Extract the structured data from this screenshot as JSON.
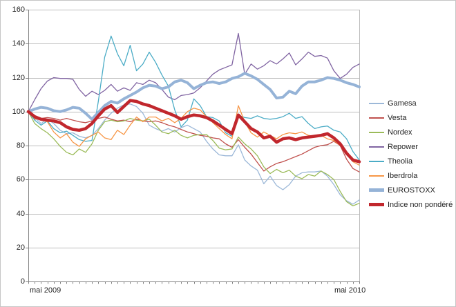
{
  "chart_data": {
    "type": "line",
    "title": "",
    "index_base": 100,
    "grid": true,
    "legend_position": "right",
    "x_axis": {
      "start_label": "mai 2009",
      "end_label": "mai 2010",
      "points": 53,
      "unit": "week"
    },
    "y_axis": {
      "min": 0,
      "max": 160,
      "step": 20,
      "ticks": [
        0,
        20,
        40,
        60,
        80,
        100,
        120,
        140,
        160
      ]
    },
    "colors": {
      "gridline": "#BCBCBC",
      "axis": "#808080",
      "text": "#1F1F1F"
    },
    "series": [
      {
        "name": "Gamesa",
        "color": "#9CB8D8",
        "width": 1.3,
        "values": [
          100,
          96.5,
          93,
          95.5,
          93,
          89,
          87,
          87.5,
          85.5,
          84.5,
          86,
          90,
          95,
          99,
          102,
          104,
          104.5,
          103,
          99,
          92,
          90,
          88.5,
          90,
          88,
          90.5,
          92,
          90,
          88,
          82.5,
          78,
          74.5,
          74,
          74,
          80.5,
          71.5,
          68,
          65.5,
          57.5,
          62,
          56.5,
          54,
          57,
          62,
          64,
          64.5,
          64.5,
          65,
          62,
          57,
          51,
          47.5,
          45.5,
          48
        ]
      },
      {
        "name": "Vesta",
        "color": "#C0504D",
        "width": 1.3,
        "values": [
          100,
          95.5,
          96,
          96.5,
          96,
          95,
          96,
          95,
          94,
          93.5,
          94.5,
          96,
          96.8,
          95.5,
          94.5,
          95,
          94,
          95.5,
          94.5,
          94,
          94.5,
          93.5,
          92,
          91,
          89.5,
          88,
          87,
          86,
          85.5,
          84.5,
          84,
          81,
          79,
          83.5,
          79,
          75,
          70,
          65,
          67.5,
          69.5,
          70.5,
          72,
          73.5,
          75,
          77,
          79,
          80,
          80.5,
          82.5,
          80,
          72,
          66.5,
          64.5
        ]
      },
      {
        "name": "Nordex",
        "color": "#9BBB59",
        "width": 1.3,
        "values": [
          100,
          93,
          90,
          87.5,
          84,
          79.5,
          76,
          74.5,
          78,
          76,
          81,
          89,
          94,
          95,
          94,
          94.5,
          96,
          95,
          94.5,
          95.5,
          92,
          88,
          87,
          89,
          86,
          84.5,
          86,
          86.5,
          86.5,
          83,
          78.5,
          77.5,
          78,
          85,
          81,
          78,
          74,
          67.5,
          63.5,
          66,
          64,
          65.5,
          62,
          60.5,
          63,
          62,
          65,
          63,
          60,
          53,
          47,
          44.5,
          46
        ]
      },
      {
        "name": "Repower",
        "color": "#8064A2",
        "width": 1.3,
        "values": [
          100,
          107,
          113.5,
          118,
          120,
          119.5,
          119.5,
          119,
          113,
          109,
          112,
          110,
          112.5,
          116,
          112,
          114,
          112.5,
          117,
          116,
          118.5,
          117,
          113,
          108.5,
          107,
          109.5,
          110,
          111,
          114,
          118,
          122,
          124.5,
          126,
          127.5,
          146,
          122,
          128,
          125,
          127,
          130,
          128,
          131,
          134.5,
          127.5,
          131,
          135,
          132.5,
          133,
          131.5,
          124,
          119.5,
          122,
          126,
          128
        ]
      },
      {
        "name": "Theolia",
        "color": "#4BACC6",
        "width": 1.3,
        "values": [
          100,
          95,
          92,
          94.5,
          90,
          87.5,
          88.5,
          86,
          83.5,
          82.5,
          83,
          106,
          132,
          144.5,
          134,
          127,
          139,
          124,
          128,
          135,
          129,
          121.5,
          115,
          101,
          91,
          95,
          107.5,
          103.5,
          97,
          96.5,
          94.5,
          87.5,
          85.5,
          98,
          96.5,
          96,
          97.5,
          96,
          95.5,
          96,
          97,
          99,
          96,
          97,
          93,
          90,
          91,
          91.5,
          89,
          88,
          84,
          76.5,
          71.5
        ]
      },
      {
        "name": "Iberdrola",
        "color": "#F79646",
        "width": 1.3,
        "values": [
          100,
          96,
          95,
          94,
          88,
          84.5,
          87,
          82,
          79.5,
          84,
          86,
          88,
          84.5,
          83.5,
          89,
          86.5,
          92,
          96.8,
          94,
          96.8,
          96.8,
          94.5,
          96,
          93.5,
          96,
          100,
          102,
          101,
          97,
          93.5,
          90,
          86.5,
          84,
          103.5,
          94,
          87.5,
          85,
          88,
          86,
          84,
          86.5,
          87.5,
          87,
          88,
          86,
          85.5,
          86,
          84,
          83,
          80,
          75.5,
          70.5,
          68.5
        ]
      },
      {
        "name": "EUROSTOXX",
        "color": "#95B3D7",
        "width": 4,
        "values": [
          100,
          101.5,
          102.5,
          102,
          100.5,
          100,
          101,
          102.5,
          102,
          99,
          95.5,
          99.5,
          103.5,
          106,
          105,
          107.5,
          109.5,
          111.5,
          114,
          115.5,
          115,
          113.5,
          114.5,
          117.5,
          118.5,
          117,
          113.5,
          115.5,
          117,
          117.5,
          116.5,
          117.5,
          119.5,
          120.5,
          122.5,
          121,
          119,
          116,
          113,
          108,
          108.5,
          112,
          110.5,
          115,
          117.5,
          117.5,
          118.5,
          120,
          119.5,
          118.5,
          117,
          116,
          114.5
        ]
      },
      {
        "name": "Indice non pondéré",
        "color": "#C1272D",
        "width": 4.5,
        "values": [
          100,
          97,
          95.5,
          95,
          94.5,
          93.5,
          91,
          89.5,
          89,
          90,
          93,
          97.5,
          101.5,
          103.5,
          99.5,
          103,
          106.5,
          106,
          104.5,
          103.5,
          102,
          100.5,
          99,
          97.5,
          95.5,
          97,
          98,
          97.5,
          96.5,
          94.5,
          92,
          89.5,
          87,
          98,
          94,
          90,
          88,
          84.5,
          85.5,
          82,
          84,
          84.5,
          83.5,
          84.5,
          85,
          85.5,
          86,
          87,
          84.5,
          81,
          75.5,
          71.5,
          70.5
        ]
      }
    ]
  }
}
